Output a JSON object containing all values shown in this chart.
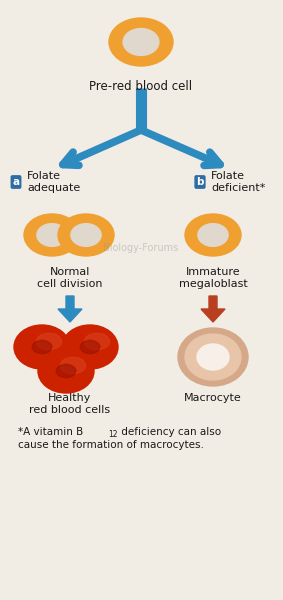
{
  "bg_color": "#f2ede4",
  "blue_arrow_color": "#2e8bc0",
  "red_arrow_color": "#b84020",
  "label_bg_color": "#2e6da4",
  "cell_outer_color": "#f0a030",
  "cell_inner_color": "#e0d8cc",
  "cell_outer_color2": "#e8c080",
  "rbc_red": "#cc2200",
  "rbc_dark": "#991100",
  "rbc_highlight": "#dd4422",
  "macro_outer": "#d4a888",
  "macro_mid": "#e8c4a8",
  "macro_inner": "#f0e0d4",
  "text_color": "#1a1a1a",
  "title": "Pre-red blood cell",
  "label_a": "a",
  "label_b": "b",
  "folate_adequate": "Folate\nadequate",
  "folate_deficient": "Folate\ndeficient*",
  "normal_cell": "Normal\ncell division",
  "immature": "Immature\nmegaloblast",
  "healthy_rbc": "Healthy\nred blood cells",
  "macrocyte_label": "Macrocyte",
  "footnote_line1": "*A vitamin B",
  "footnote_line2": " deficiency can also",
  "footnote_line3": "cause the formation of macrocytes.",
  "watermark": "Biology-Forums"
}
